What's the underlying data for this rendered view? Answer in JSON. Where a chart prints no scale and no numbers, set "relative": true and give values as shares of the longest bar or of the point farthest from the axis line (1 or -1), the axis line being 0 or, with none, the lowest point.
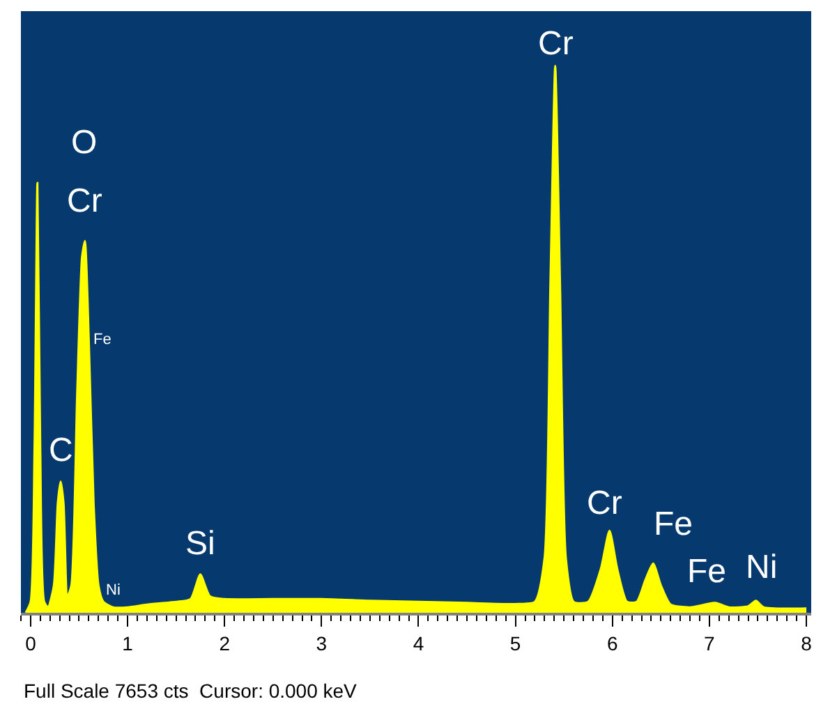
{
  "chart_data": {
    "type": "area",
    "relative": true,
    "x": [
      -0.05,
      0.0,
      0.04,
      0.07,
      0.1,
      0.14,
      0.18,
      0.24,
      0.28,
      0.31,
      0.34,
      0.38,
      0.42,
      0.48,
      0.53,
      0.56,
      0.6,
      0.65,
      0.7,
      0.75,
      0.85,
      1.0,
      1.2,
      1.5,
      1.65,
      1.75,
      1.85,
      2.0,
      2.5,
      3.0,
      3.5,
      4.0,
      4.5,
      5.0,
      5.2,
      5.3,
      5.36,
      5.41,
      5.46,
      5.52,
      5.6,
      5.75,
      5.88,
      5.97,
      6.05,
      6.15,
      6.25,
      6.34,
      6.42,
      6.5,
      6.6,
      6.8,
      7.06,
      7.2,
      7.4,
      7.48,
      7.56,
      8.0
    ],
    "series": [
      {
        "color": "#ffff00",
        "values": [
          0,
          0.02,
          0.3,
          0.786,
          0.3,
          0.02,
          0.01,
          0.05,
          0.2,
          0.24,
          0.2,
          0.03,
          0.05,
          0.4,
          0.65,
          0.68,
          0.5,
          0.2,
          0.05,
          0.02,
          0.01,
          0.01,
          0.015,
          0.02,
          0.025,
          0.07,
          0.03,
          0.025,
          0.025,
          0.025,
          0.022,
          0.02,
          0.018,
          0.016,
          0.02,
          0.1,
          0.6,
          1.0,
          0.6,
          0.1,
          0.02,
          0.02,
          0.08,
          0.15,
          0.08,
          0.02,
          0.02,
          0.06,
          0.09,
          0.05,
          0.015,
          0.01,
          0.018,
          0.01,
          0.012,
          0.022,
          0.01,
          0.008
        ]
      }
    ],
    "xlim": [
      -0.1,
      8.05
    ],
    "xticks": [
      0,
      1,
      2,
      3,
      4,
      5,
      6,
      7,
      8
    ],
    "annotations": [
      {
        "text": "O",
        "x": 0.56,
        "y": 0.68
      },
      {
        "text": "Cr",
        "x": 0.56,
        "y": 0.68
      },
      {
        "text": "Fe",
        "x": 0.6,
        "y": 0.5
      },
      {
        "text": "C",
        "x": 0.31,
        "y": 0.24
      },
      {
        "text": "Ni",
        "x": 0.85,
        "y": 0.01
      },
      {
        "text": "Si",
        "x": 1.75,
        "y": 0.07
      },
      {
        "text": "Cr",
        "x": 5.41,
        "y": 1.0
      },
      {
        "text": "Cr",
        "x": 5.97,
        "y": 0.15
      },
      {
        "text": "Fe",
        "x": 6.42,
        "y": 0.09
      },
      {
        "text": "Fe",
        "x": 7.06,
        "y": 0.018
      },
      {
        "text": "Ni",
        "x": 7.48,
        "y": 0.022
      },
      "Full Scale 7653 cts  Cursor: 0.000 keV"
    ]
  }
}
